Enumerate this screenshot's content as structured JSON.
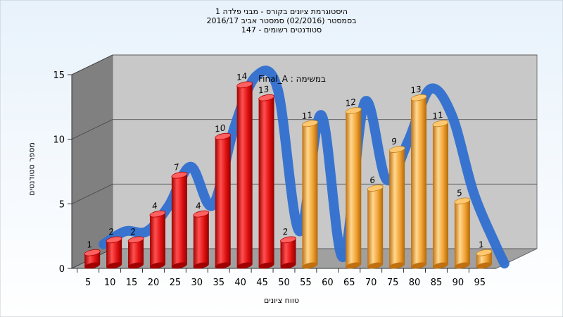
{
  "title_lines": [
    "היסטוגרמת ציונים בקורס - מבני פלדה 1",
    "בסמסטר  (02/2016)  סמסטר אביב 2016/17",
    "סטודנטים רשומים - 147"
  ],
  "chart_data": {
    "type": "bar",
    "title": "היסטוגרמת ציונים בקורס - מבני פלדה 1",
    "subtitle": [
      "בסמסטר  (02/2016)  סמסטר אביב 2016/17",
      "סטודנטים רשומים - 147"
    ],
    "xlabel": "טווח ציונים",
    "ylabel": "מספר סטודנטים",
    "ylim": [
      0,
      15
    ],
    "yticks": [
      0,
      5,
      10,
      15
    ],
    "x_tick_labels": [
      "5",
      "10",
      "15",
      "20",
      "25",
      "30",
      "35",
      "40",
      "45",
      "50",
      "55",
      "60",
      "65",
      "70",
      "75",
      "80",
      "85",
      "90",
      "95"
    ],
    "categories": [
      "5",
      "10",
      "15",
      "20",
      "25",
      "30",
      "35",
      "40",
      "45",
      "50",
      "55",
      "60",
      "65",
      "70",
      "75",
      "80",
      "85",
      "90",
      "95"
    ],
    "values": [
      1,
      2,
      2,
      4,
      7,
      4,
      10,
      14,
      13,
      2,
      11,
      0,
      12,
      6,
      9,
      13,
      11,
      5,
      1
    ],
    "data_labels": [
      "1",
      "2",
      "2",
      "4",
      "7",
      "4",
      "10",
      "14",
      "13",
      "2",
      "11",
      "",
      "12",
      "6",
      "9",
      "13",
      "11",
      "5",
      "1"
    ],
    "bar_colors": [
      "#e01010",
      "#e01010",
      "#e01010",
      "#e01010",
      "#e01010",
      "#e01010",
      "#e01010",
      "#e01010",
      "#e01010",
      "#e01010",
      "#f0a030",
      "#f0a030",
      "#f0a030",
      "#f0a030",
      "#f0a030",
      "#f0a030",
      "#f0a030",
      "#f0a030",
      "#f0a030"
    ],
    "curve": {
      "name": "Final_A",
      "annotation": "Final_A : במשימה",
      "color": "#3070d0",
      "gap_color": "#606060"
    },
    "grid": true,
    "colors": {
      "page_top": "#e8f2fb",
      "page_bottom": "#ffffff",
      "back_wall": "#c8c8c8",
      "side_wall": "#808080",
      "floor": "#a0a0a0"
    }
  }
}
